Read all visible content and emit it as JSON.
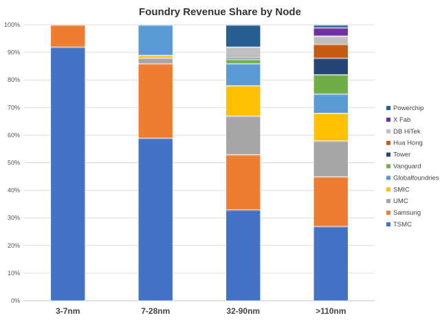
{
  "chart_data": {
    "type": "bar",
    "stacked": true,
    "percent": true,
    "title": "Foundry Revenue Share by Node",
    "categories": [
      "3-7nm",
      "7-28nm",
      "32-90nm",
      ">110nm"
    ],
    "ylim": [
      0,
      100
    ],
    "ytick_labels": [
      "0%",
      "10%",
      "20%",
      "30%",
      "40%",
      "50%",
      "60%",
      "70%",
      "80%",
      "90%",
      "100%"
    ],
    "grid": true,
    "legend_position": "right",
    "series": [
      {
        "name": "TSMC",
        "color": "#4472c4",
        "values": [
          92,
          59,
          33,
          27
        ]
      },
      {
        "name": "Samsung",
        "color": "#ed7d31",
        "values": [
          8,
          27,
          20,
          18
        ]
      },
      {
        "name": "UMC",
        "color": "#a5a5a5",
        "values": [
          0,
          2,
          14,
          13
        ]
      },
      {
        "name": "SMIC",
        "color": "#ffc000",
        "values": [
          0,
          1,
          11,
          10
        ]
      },
      {
        "name": "Globalfoundries",
        "color": "#5b9bd5",
        "values": [
          0,
          11,
          8,
          7
        ]
      },
      {
        "name": "Vanguard",
        "color": "#70ad47",
        "values": [
          0,
          0,
          1.5,
          7
        ]
      },
      {
        "name": "Tower",
        "color": "#264478",
        "values": [
          0,
          0,
          0.5,
          6
        ]
      },
      {
        "name": "Hua Hong",
        "color": "#c55a11",
        "values": [
          0,
          0,
          0,
          5
        ]
      },
      {
        "name": "DB HiTek",
        "color": "#bfbfbf",
        "values": [
          0,
          0,
          4,
          3
        ]
      },
      {
        "name": "X Fab",
        "color": "#7030a0",
        "values": [
          0,
          0,
          0,
          3
        ]
      },
      {
        "name": "Powerchip",
        "color": "#255e91",
        "values": [
          0,
          0,
          8,
          1
        ]
      }
    ],
    "legend_order": [
      "Powerchip",
      "X Fab",
      "DB HiTek",
      "Hua Hong",
      "Tower",
      "Vanguard",
      "Globalfoundries",
      "SMIC",
      "UMC",
      "Samsung",
      "TSMC"
    ]
  }
}
